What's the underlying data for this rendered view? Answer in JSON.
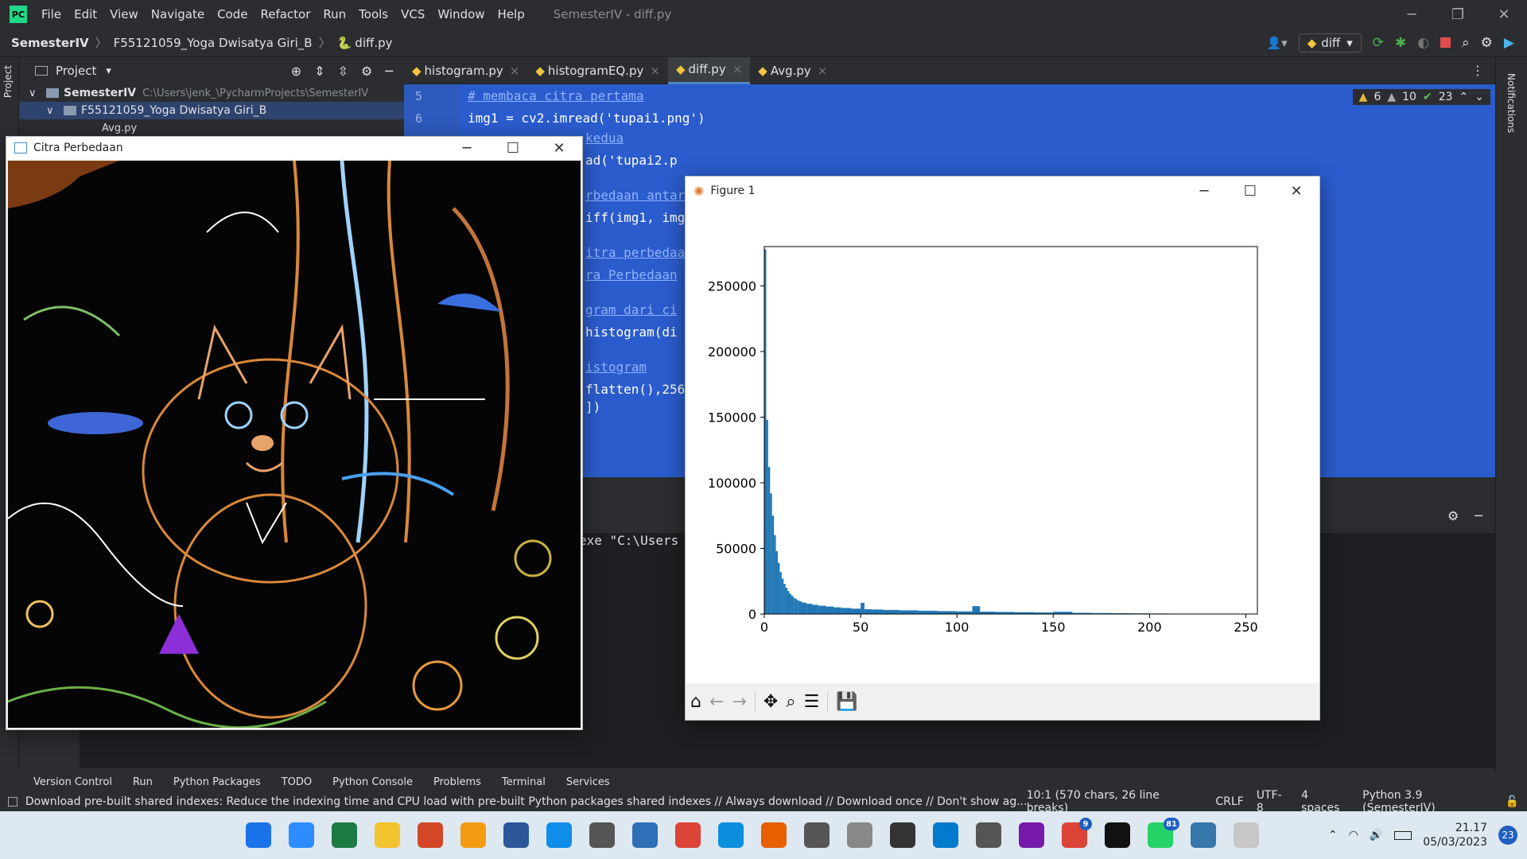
{
  "ide": {
    "title": "SemesterIV - diff.py",
    "menu": [
      "File",
      "Edit",
      "View",
      "Navigate",
      "Code",
      "Refactor",
      "Run",
      "Tools",
      "VCS",
      "Window",
      "Help"
    ],
    "breadcrumb": [
      "SemesterIV",
      "F55121059_Yoga Dwisatya Giri_B",
      "diff.py"
    ],
    "run_config": "diff",
    "project_label": "Project",
    "tree": [
      {
        "name": "SemesterIV",
        "path": "C:\\Users\\jenk_\\PycharmProjects\\SemesterIV"
      },
      {
        "name": "F55121059_Yoga Dwisatya Giri_B",
        "path": ""
      },
      {
        "name": "Avg.py",
        "path": ""
      }
    ],
    "tabs": [
      "histogram.py",
      "histogramEQ.py",
      "diff.py",
      "Avg.py"
    ],
    "active_tab": "diff.py",
    "inspections": {
      "warnings": "6",
      "weak": "10",
      "ok": "23"
    },
    "line_numbers": [
      "5",
      "6"
    ],
    "code_lines": [
      {
        "text": "# membaca citra pertama",
        "kind": "comment"
      },
      {
        "text": "img1 = cv2.imread('tupai1.png')",
        "kind": "code"
      }
    ],
    "code_fragments": [
      "kedua",
      "ad('tupai2.p",
      "rbedaan antar",
      "iff(img1, img",
      "itra perbedaa",
      "ra Perbedaan",
      "gram dari ci",
      "histogram(di",
      "istogram",
      "flatten(),256,",
      "])"
    ],
    "run_output": "exe \"C:\\Users",
    "tool_windows": [
      "Version Control",
      "Run",
      "Python Packages",
      "TODO",
      "Python Console",
      "Problems",
      "Terminal",
      "Services"
    ],
    "status_message": "Download pre-built shared indexes: Reduce the indexing time and CPU load with pre-built Python packages shared indexes // Always download // Download once // Don't show ag... (today 2",
    "status_right": [
      "10:1 (570 chars, 26 line breaks)",
      "CRLF",
      "UTF-8",
      "4 spaces",
      "Python 3.9 (SemesterIV)"
    ],
    "notifications_label": "Notifications"
  },
  "citra_window": {
    "title": "Citra Perbedaan"
  },
  "figure_window": {
    "title": "Figure 1"
  },
  "chart_data": {
    "type": "bar",
    "title": "",
    "xlabel": "",
    "ylabel": "",
    "xlim": [
      0,
      256
    ],
    "ylim": [
      0,
      280000
    ],
    "xticks": [
      "0",
      "50",
      "100",
      "150",
      "200",
      "250"
    ],
    "yticks": [
      "0",
      "50000",
      "100000",
      "150000",
      "200000",
      "250000"
    ],
    "color": "#1f77b4",
    "bins": [
      {
        "x": 0,
        "y": 278000
      },
      {
        "x": 1,
        "y": 148000
      },
      {
        "x": 2,
        "y": 112000
      },
      {
        "x": 3,
        "y": 92000
      },
      {
        "x": 4,
        "y": 75000
      },
      {
        "x": 5,
        "y": 60000
      },
      {
        "x": 6,
        "y": 48000
      },
      {
        "x": 7,
        "y": 39000
      },
      {
        "x": 8,
        "y": 32000
      },
      {
        "x": 9,
        "y": 27000
      },
      {
        "x": 10,
        "y": 23000
      },
      {
        "x": 11,
        "y": 20000
      },
      {
        "x": 12,
        "y": 17500
      },
      {
        "x": 13,
        "y": 15500
      },
      {
        "x": 14,
        "y": 14000
      },
      {
        "x": 15,
        "y": 12500
      },
      {
        "x": 16,
        "y": 11500
      },
      {
        "x": 17,
        "y": 10500
      },
      {
        "x": 18,
        "y": 9800
      },
      {
        "x": 19,
        "y": 9200
      },
      {
        "x": 20,
        "y": 8600
      },
      {
        "x": 22,
        "y": 7800
      },
      {
        "x": 25,
        "y": 7000
      },
      {
        "x": 28,
        "y": 6300
      },
      {
        "x": 32,
        "y": 5700
      },
      {
        "x": 36,
        "y": 5100
      },
      {
        "x": 40,
        "y": 4600
      },
      {
        "x": 45,
        "y": 4100
      },
      {
        "x": 50,
        "y": 8500
      },
      {
        "x": 52,
        "y": 3700
      },
      {
        "x": 56,
        "y": 3400
      },
      {
        "x": 62,
        "y": 3100
      },
      {
        "x": 70,
        "y": 2800
      },
      {
        "x": 80,
        "y": 2500
      },
      {
        "x": 90,
        "y": 2200
      },
      {
        "x": 100,
        "y": 2000
      },
      {
        "x": 108,
        "y": 6000
      },
      {
        "x": 112,
        "y": 1800
      },
      {
        "x": 120,
        "y": 1600
      },
      {
        "x": 130,
        "y": 1400
      },
      {
        "x": 140,
        "y": 1200
      },
      {
        "x": 150,
        "y": 1700
      },
      {
        "x": 160,
        "y": 900
      },
      {
        "x": 170,
        "y": 750
      },
      {
        "x": 180,
        "y": 600
      },
      {
        "x": 190,
        "y": 500
      },
      {
        "x": 200,
        "y": 400
      },
      {
        "x": 210,
        "y": 300
      },
      {
        "x": 220,
        "y": 220
      },
      {
        "x": 230,
        "y": 160
      },
      {
        "x": 240,
        "y": 100
      },
      {
        "x": 250,
        "y": 60
      }
    ]
  },
  "figure_toolbar": [
    "home-icon",
    "back-icon",
    "forward-icon",
    "pan-icon",
    "zoom-icon",
    "configure-icon",
    "save-icon"
  ],
  "taskbar": {
    "apps": [
      "windows-start",
      "zoom",
      "excel",
      "file-explorer",
      "powerpoint",
      "pdf",
      "word",
      "teamviewer",
      "app",
      "world",
      "chrome",
      "edge",
      "firefox",
      "calculator",
      "printer",
      "notes",
      "vscode",
      "app",
      "onenote",
      "chrome",
      "pycharm",
      "whatsapp",
      "python",
      "figure"
    ],
    "chrome_badge": "9",
    "whatsapp_badge": "81",
    "notification_badge": "23",
    "time": "21.17",
    "date": "05/03/2023"
  },
  "colors": {
    "editor_bg": "#2b5ccd",
    "ide_bg": "#2b2d30",
    "accent": "#4a88c7",
    "hist": "#1f77b4"
  }
}
